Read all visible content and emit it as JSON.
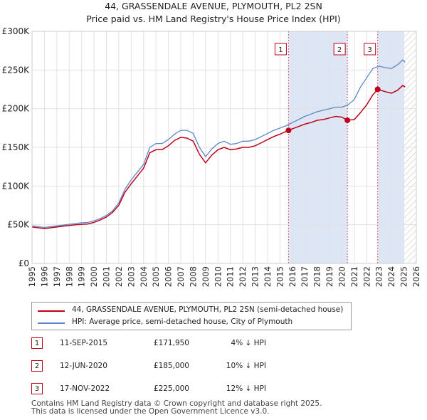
{
  "title_line1": "44, GRASSENDALE AVENUE, PLYMOUTH, PL2 2SN",
  "title_line2": "Price paid vs. HM Land Registry's House Price Index (HPI)",
  "colors": {
    "property": "#c0001b",
    "hpi": "#5b87c8",
    "shade": "#dde6f5",
    "grid": "#e2e2e2"
  },
  "legend": {
    "property_label": "44, GRASSENDALE AVENUE, PLYMOUTH, PL2 2SN (semi-detached house)",
    "hpi_label": "HPI: Average price, semi-detached house, City of Plymouth"
  },
  "transactions": [
    {
      "num": "1",
      "date": "11-SEP-2015",
      "price": "£171,950",
      "hpi_diff": "4% ↓ HPI"
    },
    {
      "num": "2",
      "date": "12-JUN-2020",
      "price": "£185,000",
      "hpi_diff": "10% ↓ HPI"
    },
    {
      "num": "3",
      "date": "17-NOV-2022",
      "price": "£225,000",
      "hpi_diff": "12% ↓ HPI"
    }
  ],
  "footer_line1": "Contains HM Land Registry data © Crown copyright and database right 2025.",
  "footer_line2": "This data is licensed under the Open Government Licence v3.0.",
  "chart_data": {
    "type": "line",
    "title": "44, GRASSENDALE AVENUE, PLYMOUTH, PL2 2SN",
    "subtitle": "Price paid vs. HM Land Registry's House Price Index (HPI)",
    "xlim": [
      1995,
      2026
    ],
    "ylim": [
      0,
      300000
    ],
    "x_ticks": [
      1995,
      1996,
      1997,
      1998,
      1999,
      2000,
      2001,
      2002,
      2003,
      2004,
      2005,
      2006,
      2007,
      2008,
      2009,
      2010,
      2011,
      2012,
      2013,
      2014,
      2015,
      2016,
      2017,
      2018,
      2019,
      2020,
      2021,
      2022,
      2023,
      2024,
      2025,
      2026
    ],
    "y_ticks": [
      0,
      50000,
      100000,
      150000,
      200000,
      250000,
      300000
    ],
    "y_tick_labels": [
      "£0",
      "£50K",
      "£100K",
      "£150K",
      "£200K",
      "£250K",
      "£300K"
    ],
    "grid": true,
    "shaded_periods": [
      [
        2015.7,
        2020.45
      ],
      [
        2022.88,
        2025.0
      ]
    ],
    "forecast_hatch_from": 2025.0,
    "markers": [
      {
        "label": "1",
        "x": 2015.69,
        "y": 171950
      },
      {
        "label": "2",
        "x": 2020.44,
        "y": 185000
      },
      {
        "label": "3",
        "x": 2022.88,
        "y": 225000
      }
    ],
    "series": [
      {
        "name": "HPI: Average price, semi-detached house, City of Plymouth",
        "x": [
          1995,
          1995.5,
          1996,
          1996.5,
          1997,
          1997.5,
          1998,
          1998.5,
          1999,
          1999.5,
          2000,
          2000.5,
          2001,
          2001.5,
          2002,
          2002.5,
          2003,
          2003.5,
          2004,
          2004.5,
          2005,
          2005.5,
          2006,
          2006.5,
          2007,
          2007.5,
          2008,
          2008.5,
          2009,
          2009.5,
          2010,
          2010.5,
          2011,
          2011.5,
          2012,
          2012.5,
          2013,
          2013.5,
          2014,
          2014.5,
          2015,
          2015.5,
          2016,
          2016.5,
          2017,
          2017.5,
          2018,
          2018.5,
          2019,
          2019.5,
          2020,
          2020.5,
          2021,
          2021.5,
          2022,
          2022.5,
          2023,
          2023.5,
          2024,
          2024.5,
          2024.9,
          2025.1
        ],
        "y": [
          48500,
          47500,
          46500,
          47500,
          48500,
          49500,
          50500,
          51500,
          52500,
          53000,
          55000,
          58000,
          62000,
          68000,
          78000,
          96000,
          108000,
          118000,
          128000,
          150000,
          155000,
          155000,
          160000,
          167000,
          172000,
          172000,
          168000,
          150000,
          138000,
          148000,
          155000,
          158000,
          154000,
          155000,
          158000,
          158000,
          160000,
          164000,
          168000,
          172000,
          175000,
          178000,
          182000,
          186000,
          190000,
          193000,
          196000,
          198000,
          200000,
          202000,
          202000,
          205000,
          212000,
          228000,
          240000,
          252000,
          255000,
          253000,
          252000,
          257000,
          263000,
          260000
        ]
      },
      {
        "name": "44, GRASSENDALE AVENUE, PLYMOUTH, PL2 2SN (semi-detached house)",
        "x": [
          1995,
          1995.5,
          1996,
          1996.5,
          1997,
          1997.5,
          1998,
          1998.5,
          1999,
          1999.5,
          2000,
          2000.5,
          2001,
          2001.5,
          2002,
          2002.5,
          2003,
          2003.5,
          2004,
          2004.5,
          2005,
          2005.5,
          2006,
          2006.5,
          2007,
          2007.5,
          2008,
          2008.5,
          2009,
          2009.5,
          2010,
          2010.5,
          2011,
          2011.5,
          2012,
          2012.5,
          2013,
          2013.5,
          2014,
          2014.5,
          2015,
          2015.69,
          2016,
          2016.5,
          2017,
          2017.5,
          2018,
          2018.5,
          2019,
          2019.5,
          2020,
          2020.44,
          2021,
          2021.5,
          2022,
          2022.5,
          2022.88,
          2023.5,
          2024,
          2024.5,
          2024.9,
          2025.1
        ],
        "y": [
          47000,
          46000,
          45000,
          46000,
          47000,
          48000,
          49000,
          50000,
          50500,
          51000,
          53000,
          56000,
          60000,
          66000,
          75000,
          92000,
          103000,
          113000,
          123000,
          143000,
          147000,
          147000,
          152000,
          159000,
          163000,
          162000,
          158000,
          141000,
          130000,
          140000,
          147000,
          150000,
          147000,
          148000,
          150000,
          150000,
          152000,
          156000,
          160000,
          164000,
          167000,
          171950,
          174000,
          177000,
          180000,
          182000,
          185000,
          186000,
          188000,
          190000,
          189000,
          185000,
          186000,
          195000,
          205000,
          218000,
          225000,
          222000,
          220000,
          224000,
          230000,
          228000
        ]
      }
    ]
  }
}
